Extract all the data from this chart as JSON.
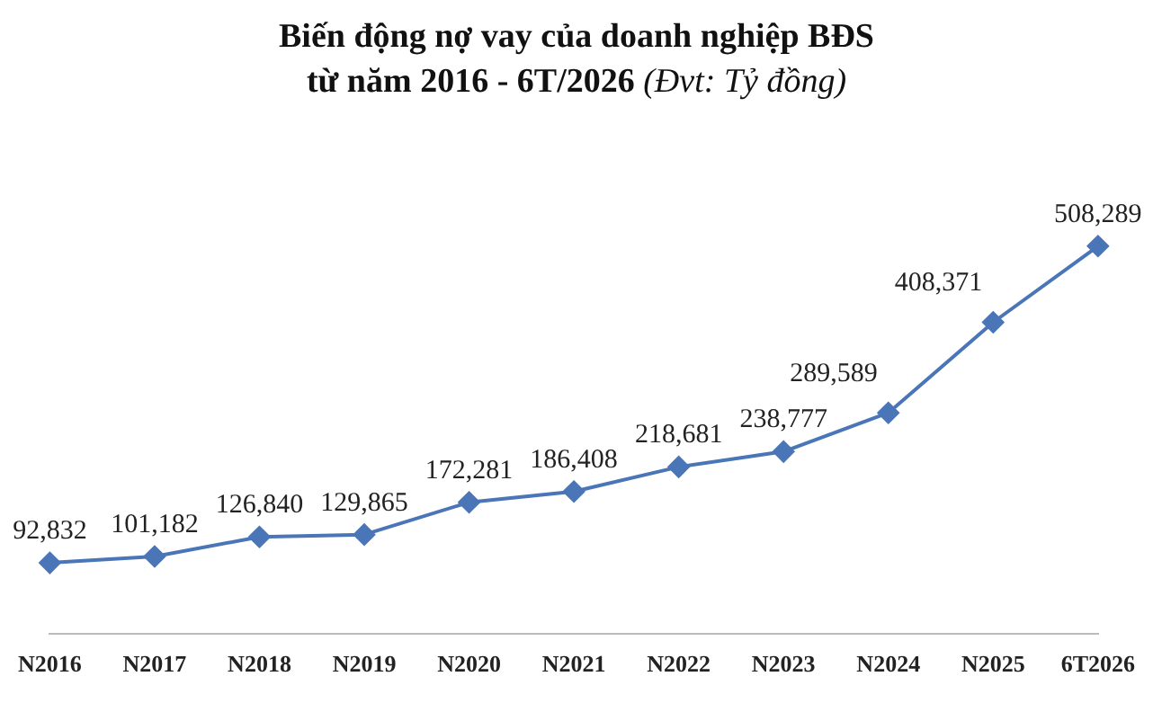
{
  "chart_data": {
    "type": "line",
    "title": "Biến động nợ vay của doanh nghiệp BĐS\ntừ năm 2016 - 6T/2026",
    "subtitle": "(Đvt: Tỷ đồng)",
    "categories": [
      "N2016",
      "N2017",
      "N2018",
      "N2019",
      "N2020",
      "N2021",
      "N2022",
      "N2023",
      "N2024",
      "N2025",
      "6T2026"
    ],
    "series": [
      {
        "color": "#4a76b8",
        "values": [
          92832,
          101182,
          126840,
          129865,
          172281,
          186408,
          218681,
          238777,
          289589,
          408371,
          508289
        ],
        "value_labels": [
          "92,832",
          "101,182",
          "126,840",
          "129,865",
          "172,281",
          "186,408",
          "218,681",
          "238,777",
          "289,589",
          "408,371",
          "508,289"
        ]
      }
    ],
    "marker": "diamond",
    "grid": false,
    "legend": false
  }
}
